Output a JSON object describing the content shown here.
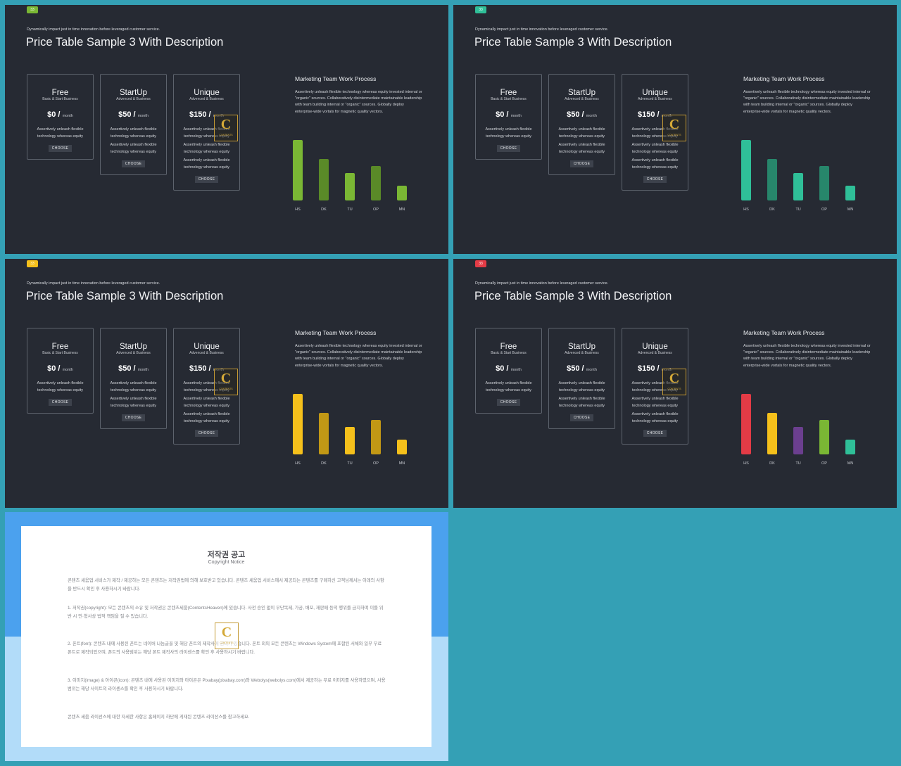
{
  "slides": [
    {
      "page_number": "33",
      "accent": "#7ab734",
      "bar_colors": [
        "#7ab734",
        "#5a8a28",
        "#7ab734",
        "#5a8a28",
        "#7ab734"
      ]
    },
    {
      "page_number": "33",
      "accent": "#2fbf98",
      "bar_colors": [
        "#2fbf98",
        "#27866b",
        "#2fbf98",
        "#27866b",
        "#2fbf98"
      ]
    },
    {
      "page_number": "33",
      "accent": "#f5c01b",
      "bar_colors": [
        "#f5c01b",
        "#c29815",
        "#f5c01b",
        "#c29815",
        "#f5c01b"
      ]
    },
    {
      "page_number": "33",
      "accent": "#e33b46",
      "bar_colors": [
        "#e33b46",
        "#f5c01b",
        "#6b3f8f",
        "#7ab734",
        "#2fbf98"
      ]
    }
  ],
  "content": {
    "subtitle": "Dynamically impact just in time innovation  before leveraged customer service.",
    "title": "Price Table Sample 3 With Description",
    "plans": [
      {
        "name": "Free",
        "tagline": "Basic & Start Business",
        "price": "$0 /",
        "period": "month",
        "features": [
          "Assertively unleash flexible technology whereas equity"
        ],
        "button": "CHOOSE"
      },
      {
        "name": "StartUp",
        "tagline": "Advenced & Business",
        "price": "$50 /",
        "period": "month",
        "features": [
          "Assertively unleash flexible technology whereas equity",
          "Assertively unleash flexible technology whereas equity"
        ],
        "button": "CHOOSE"
      },
      {
        "name": "Unique",
        "tagline": "Advenced & Business",
        "price": "$150 /",
        "period": "month",
        "features": [
          "Assertively unleash flexible technology whereas equity",
          "Assertively unleash flexible technology whereas equity",
          "Assertively unleash flexible technology whereas equity"
        ],
        "button": "CHOOSE"
      }
    ],
    "process_title": "Marketing Team Work Process",
    "process_text": "Assertively unleash flexible technology whereas equity invested internal or \"organic\" sources. Collaboratively disintermediate maintainable leadership with team building internal or \"organic\" sources. Globally deploy enterprise-wide vortals for magnetic quality vectors."
  },
  "chart_data": {
    "type": "bar",
    "categories": [
      "HS",
      "DK",
      "TU",
      "OP",
      "MN"
    ],
    "values": [
      100,
      69,
      45,
      57,
      24
    ],
    "ylim": [
      0,
      100
    ],
    "grid": false,
    "axes_visible": false
  },
  "watermark": {
    "letter": "C",
    "text": "CONTENTS"
  },
  "notice": {
    "title": "저작권 공고",
    "subtitle": "Copyright Notice",
    "paragraphs": [
      "콘텐츠 세움업 서비스가 제작 / 제공하는 모든 콘텐츠는 저작권법에 의해 보호받고 있습니다. 콘텐츠 세움업 서비스에서 제공되는 콘텐츠를 구매하신 고객님께서는 아래의 사항을 반드시 확인 후 사용하시기 바랍니다.",
      "1. 저작권(copyright): 모든 콘텐츠의 소유 및 저작권은 콘텐츠세움(ContentsHeaven)에 있습니다. 사전 승인 없이 무단복제, 가공, 배포, 재판매 등의 행위를 금지하며 이를 위반 시 민·형사상 법적 책임을 질 수 있습니다.",
      "2. 폰트(font): 콘텐츠 내에 사용된 폰트는 네이버 나눔글꼴 및 해당 폰트의 제작사에 권리가 있습니다. 폰트 외의 모든 콘텐츠는 Windows System에 포함된 서체와 일부 무료폰트로 제작되었으며, 폰트의 사용범위는 해당 폰트 제작사의 라이센스를 확인 후 사용하시기 바랍니다.",
      "3. 이미지(image) & 아이콘(icon): 콘텐츠 내에 사용된 이미지와 아이콘은 Pixabay(pixabay.com)와 Webolys(webolys.com)에서 제공하는 무료 이미지를 사용하였으며, 사용범위는 해당 사이트의 라이센스를 확인 후 사용하시기 바랍니다.",
      "콘텐츠 세움 라이선스에 대한 자세한 사항은 홈페이지 하단에 게재된 콘텐츠 라이선스를 참고하세요."
    ]
  }
}
